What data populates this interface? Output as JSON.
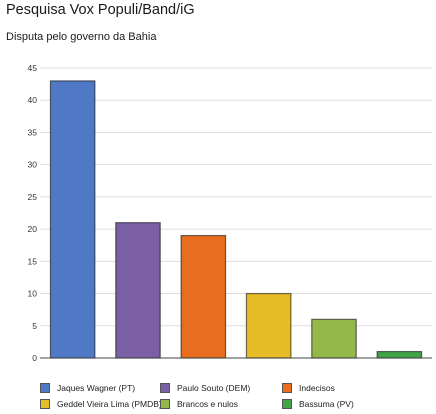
{
  "title": "Pesquisa Vox Populi/Band/iG",
  "subtitle": "Disputa pelo governo da Bahia",
  "chart_data": {
    "type": "bar",
    "title": "Pesquisa Vox Populi/Band/iG",
    "subtitle": "Disputa pelo governo da Bahia",
    "xlabel": "",
    "ylabel": "",
    "ylim": [
      0,
      45
    ],
    "yticks": [
      0,
      5,
      10,
      15,
      20,
      25,
      30,
      35,
      40,
      45
    ],
    "grid": true,
    "legend_position": "bottom",
    "categories": [
      "Jaques Wagner (PT)",
      "Paulo Souto (DEM)",
      "Indecisos",
      "Geddel Vieira Lima (PMDB)",
      "Brancos e nulos",
      "Bassuma (PV)"
    ],
    "values": [
      43,
      21,
      19,
      10,
      6,
      1
    ],
    "colors": [
      "#4f79c4",
      "#7b60a6",
      "#e86d1f",
      "#e6bc27",
      "#94b84a",
      "#41a447"
    ],
    "legend": [
      {
        "label": "Jaques Wagner (PT)",
        "color": "#4f79c4"
      },
      {
        "label": "Paulo Souto (DEM)",
        "color": "#7b60a6"
      },
      {
        "label": "Indecisos",
        "color": "#e86d1f"
      },
      {
        "label": "Geddel Vieira Lima (PMDB)",
        "color": "#e6bc27"
      },
      {
        "label": "Brancos e nulos",
        "color": "#94b84a"
      },
      {
        "label": "Bassuma (PV)",
        "color": "#41a447"
      }
    ]
  }
}
